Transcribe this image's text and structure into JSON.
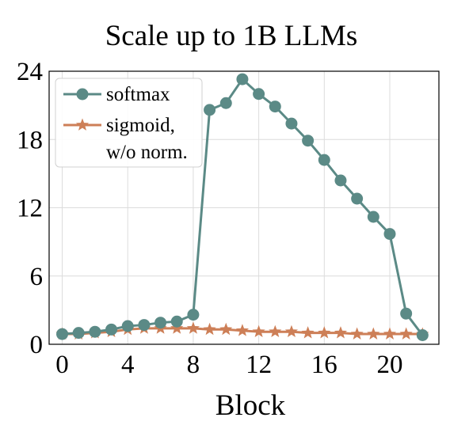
{
  "chart_data": {
    "type": "line",
    "title": "Scale up to 1B LLMs",
    "xlabel": "Block",
    "ylabel": "",
    "xlim": [
      -0.8,
      23
    ],
    "ylim": [
      0,
      24
    ],
    "xticks": [
      0,
      4,
      8,
      12,
      16,
      20
    ],
    "yticks": [
      0,
      6,
      12,
      18,
      24
    ],
    "grid": true,
    "legend_position": "top-left",
    "colors": {
      "softmax": "#5b8a86",
      "sigmoid": "#cd7f57"
    },
    "x": [
      0,
      1,
      2,
      3,
      4,
      5,
      6,
      7,
      8,
      9,
      10,
      11,
      12,
      13,
      14,
      15,
      16,
      17,
      18,
      19,
      20,
      21,
      22
    ],
    "series": [
      {
        "name": "softmax",
        "marker": "circle",
        "values": [
          0.9,
          1.0,
          1.1,
          1.3,
          1.6,
          1.7,
          1.9,
          2.0,
          2.6,
          20.6,
          21.2,
          23.3,
          22.0,
          20.9,
          19.4,
          17.9,
          16.2,
          14.4,
          12.8,
          11.2,
          9.7,
          2.7,
          0.8
        ]
      },
      {
        "name": "sigmoid,\nw/o norm.",
        "legend_lines": [
          "sigmoid,",
          "w/o norm."
        ],
        "marker": "star",
        "values": [
          0.9,
          0.9,
          1.0,
          1.1,
          1.3,
          1.4,
          1.4,
          1.4,
          1.4,
          1.3,
          1.3,
          1.2,
          1.1,
          1.1,
          1.1,
          1.0,
          1.0,
          1.0,
          0.9,
          0.9,
          0.9,
          0.9,
          0.9
        ]
      }
    ]
  }
}
